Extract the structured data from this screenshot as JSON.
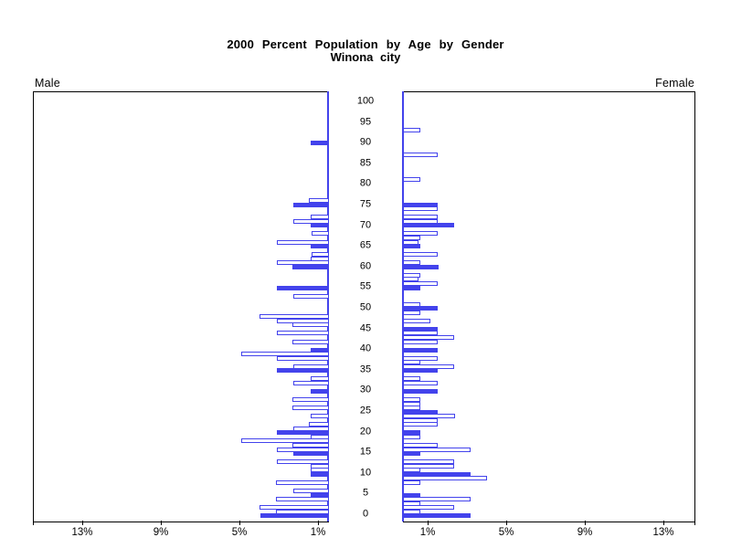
{
  "title": "2000 Percent Population by Age by Gender",
  "subtitle": "Winona city",
  "panel_labels": {
    "male": "Male",
    "female": "Female"
  },
  "colors": {
    "bar_blue": "#4343ec",
    "frame_black": "#000000",
    "background": "#ffffff"
  },
  "age_axis": {
    "min": 0,
    "max": 100,
    "step": 5,
    "tick_labels": [
      "0",
      "5",
      "10",
      "15",
      "20",
      "25",
      "30",
      "35",
      "40",
      "45",
      "50",
      "55",
      "60",
      "65",
      "70",
      "75",
      "80",
      "85",
      "90",
      "95",
      "100"
    ]
  },
  "pct_axis": {
    "male_tick_labels": [
      "13%",
      "9%",
      "5%",
      "1%"
    ],
    "male_tick_values": [
      13,
      9,
      5,
      1
    ],
    "female_tick_labels": [
      "1%",
      "5%",
      "9%",
      "13%"
    ],
    "female_tick_values": [
      1,
      5,
      9,
      13
    ]
  },
  "chart_data": {
    "type": "bar",
    "variant": "population_pyramid",
    "title": "2000 Percent Population by Age by Gender",
    "subtitle": "Winona city",
    "unit": "percent of total population",
    "age_min": 0,
    "age_max": 100,
    "xlim_pct": [
      0,
      15
    ],
    "filled_rule": "bars for ages divisible by 5 are solid blue; all other ages are white with blue outline",
    "series": [
      {
        "name": "Male",
        "side": "left",
        "values": [
          3.5,
          2.7,
          3.55,
          0,
          2.7,
          0.95,
          1.8,
          0,
          2.7,
          0,
          0.95,
          0.95,
          0.95,
          2.65,
          0,
          1.8,
          2.65,
          1.85,
          4.45,
          0.95,
          2.65,
          1.8,
          1.0,
          0,
          0.95,
          0,
          1.85,
          0,
          1.85,
          0,
          0.95,
          0,
          1.8,
          0.95,
          0,
          2.65,
          1.8,
          0,
          2.65,
          4.45,
          0.95,
          0,
          1.85,
          0,
          2.65,
          0,
          1.85,
          2.65,
          3.55,
          0,
          0,
          0,
          0,
          1.8,
          0,
          2.65,
          0,
          0,
          0,
          0,
          1.85,
          2.65,
          0.95,
          0.9,
          0,
          0.95,
          2.65,
          0,
          0.9,
          0,
          0.95,
          1.8,
          0.95,
          0,
          0,
          1.8,
          1.0,
          0,
          0,
          0,
          0,
          0,
          0,
          0,
          0,
          0,
          0,
          0,
          0,
          0,
          0.95,
          0,
          0,
          0,
          0,
          0,
          0,
          0,
          0,
          0,
          0
        ]
      },
      {
        "name": "Female",
        "side": "right",
        "values": [
          3.45,
          0.9,
          2.6,
          0.9,
          3.45,
          0.9,
          0,
          0,
          0.9,
          4.3,
          3.45,
          0.9,
          2.6,
          2.6,
          0,
          0.9,
          3.45,
          1.75,
          0,
          0.9,
          0.9,
          0,
          1.75,
          1.75,
          2.65,
          1.75,
          0.9,
          0.9,
          0.9,
          0,
          1.75,
          0,
          1.75,
          0.9,
          0,
          1.75,
          2.6,
          0.9,
          1.75,
          0,
          1.75,
          0,
          1.75,
          2.6,
          1.75,
          1.75,
          0,
          1.4,
          0,
          0.9,
          1.75,
          0.9,
          0,
          0,
          0,
          0.9,
          1.75,
          0.8,
          0.9,
          0,
          1.8,
          0.9,
          0,
          1.75,
          0,
          0.9,
          0.8,
          0.9,
          1.75,
          0,
          2.6,
          1.75,
          1.75,
          0,
          1.75,
          1.75,
          0,
          0,
          0,
          0,
          0,
          0.9,
          0,
          0,
          0,
          0,
          0,
          1.75,
          0,
          0,
          0,
          0,
          0,
          0.9,
          0,
          0,
          0,
          0,
          0,
          0,
          0
        ]
      }
    ]
  }
}
